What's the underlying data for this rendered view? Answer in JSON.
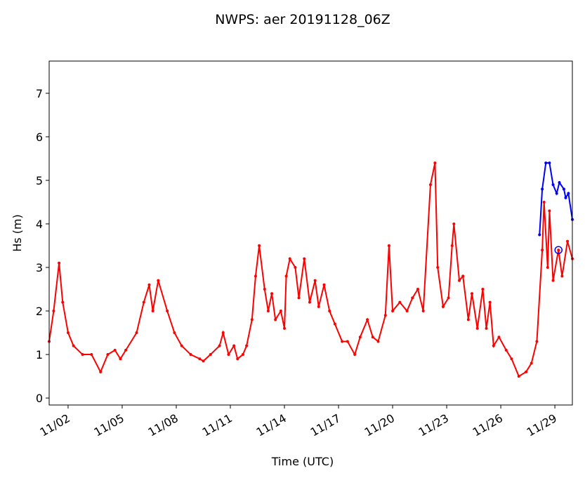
{
  "chart_data": {
    "type": "line",
    "title": "NWPS: aer 20191128_06Z",
    "xlabel": "Time (UTC)",
    "ylabel": "Hs (m)",
    "xlim": [
      0.95,
      29.97
    ],
    "ylim": [
      -0.16,
      7.74
    ],
    "xticks": [
      {
        "value": 2,
        "label": "11/02"
      },
      {
        "value": 5,
        "label": "11/05"
      },
      {
        "value": 8,
        "label": "11/08"
      },
      {
        "value": 11,
        "label": "11/11"
      },
      {
        "value": 14,
        "label": "11/14"
      },
      {
        "value": 17,
        "label": "11/17"
      },
      {
        "value": 20,
        "label": "11/20"
      },
      {
        "value": 23,
        "label": "11/23"
      },
      {
        "value": 26,
        "label": "11/26"
      },
      {
        "value": 29,
        "label": "11/29"
      }
    ],
    "yticks": [
      0,
      1,
      2,
      3,
      4,
      5,
      6,
      7
    ],
    "series": [
      {
        "color": "#ff0000",
        "x": [
          0.95,
          1.2,
          1.5,
          1.7,
          2.0,
          2.3,
          2.8,
          3.3,
          3.8,
          4.2,
          4.6,
          4.9,
          5.2,
          5.8,
          6.2,
          6.5,
          6.7,
          7.0,
          7.5,
          7.9,
          8.3,
          8.8,
          9.3,
          9.5,
          9.9,
          10.4,
          10.6,
          10.9,
          11.2,
          11.4,
          11.7,
          11.9,
          12.2,
          12.4,
          12.6,
          12.9,
          13.1,
          13.3,
          13.5,
          13.8,
          14.0,
          14.1,
          14.3,
          14.6,
          14.8,
          15.1,
          15.4,
          15.7,
          15.9,
          16.2,
          16.5,
          16.8,
          17.2,
          17.5,
          17.9,
          18.2,
          18.6,
          18.9,
          19.2,
          19.6,
          19.8,
          20.0,
          20.4,
          20.8,
          21.1,
          21.4,
          21.7,
          22.1,
          22.35,
          22.5,
          22.8,
          23.1,
          23.3,
          23.4,
          23.7,
          23.9,
          24.2,
          24.4,
          24.7,
          25.0,
          25.2,
          25.4,
          25.6,
          25.9,
          26.3,
          26.6,
          27.0,
          27.4,
          27.7,
          28.0,
          28.3,
          28.4,
          28.6,
          28.7,
          28.9,
          29.2,
          29.4,
          29.7,
          29.97
        ],
        "values": [
          1.3,
          2.0,
          3.1,
          2.2,
          1.5,
          1.2,
          1.0,
          1.0,
          0.6,
          1.0,
          1.1,
          0.9,
          1.1,
          1.5,
          2.2,
          2.6,
          2.0,
          2.7,
          2.0,
          1.5,
          1.2,
          1.0,
          0.9,
          0.85,
          1.0,
          1.2,
          1.5,
          1.0,
          1.2,
          0.9,
          1.0,
          1.2,
          1.8,
          2.8,
          3.5,
          2.5,
          2.0,
          2.4,
          1.8,
          2.0,
          1.6,
          2.8,
          3.2,
          3.0,
          2.3,
          3.2,
          2.2,
          2.7,
          2.1,
          2.6,
          2.0,
          1.7,
          1.3,
          1.3,
          1.0,
          1.4,
          1.8,
          1.4,
          1.3,
          1.9,
          3.5,
          2.0,
          2.2,
          2.0,
          2.3,
          2.5,
          2.0,
          4.9,
          5.4,
          3.0,
          2.1,
          2.3,
          3.5,
          4.0,
          2.7,
          2.8,
          1.8,
          2.4,
          1.6,
          2.5,
          1.6,
          2.2,
          1.2,
          1.4,
          1.1,
          0.9,
          0.5,
          0.6,
          0.8,
          1.3,
          3.4,
          4.5,
          3.0,
          4.3,
          2.7,
          3.4,
          2.8,
          3.6,
          3.2
        ]
      },
      {
        "color": "#0000ff",
        "x": [
          28.15,
          28.3,
          28.5,
          28.7,
          28.9,
          29.1,
          29.25,
          29.5,
          29.6,
          29.75,
          29.97
        ],
        "values": [
          3.75,
          4.8,
          5.4,
          5.4,
          4.9,
          4.7,
          4.95,
          4.8,
          4.6,
          4.7,
          4.1
        ]
      },
      {
        "color": "#0000ff",
        "marker": "circle-open",
        "x": [
          29.2
        ],
        "values": [
          3.4
        ]
      }
    ]
  }
}
